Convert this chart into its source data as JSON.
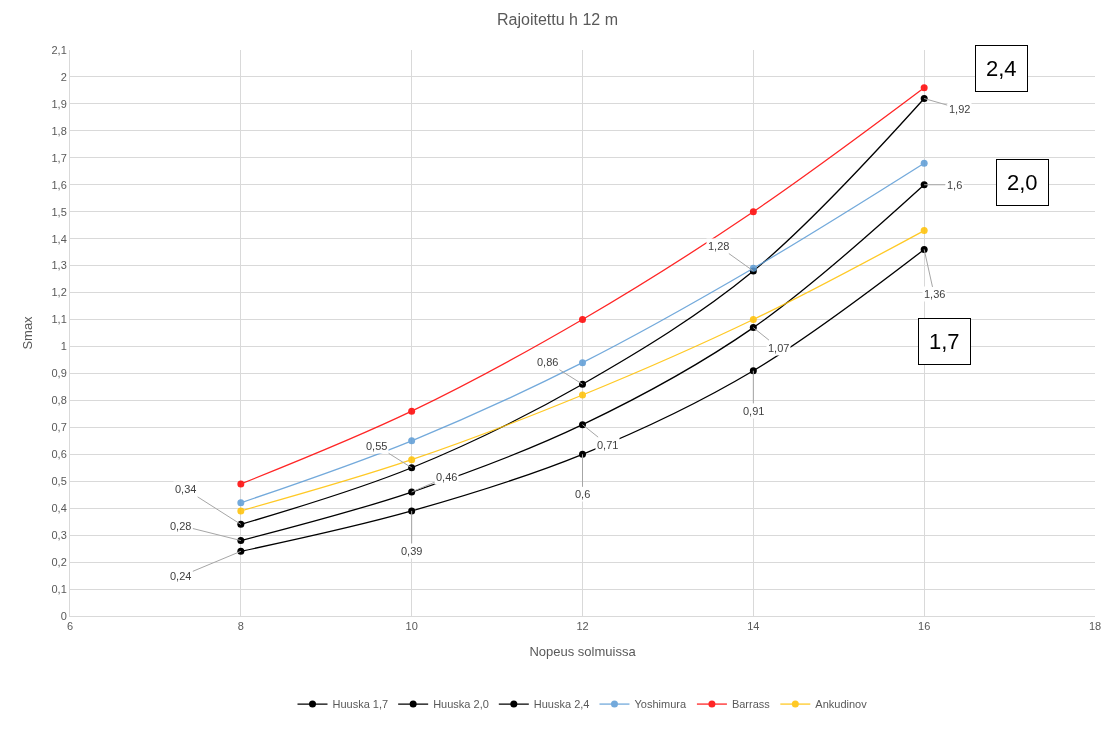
{
  "chart_data": {
    "type": "line",
    "title": "Rajoitettu h 12 m",
    "xlabel": "Nopeus solmuissa",
    "ylabel": "Smax",
    "x": [
      8,
      10,
      12,
      14,
      16
    ],
    "series": [
      {
        "name": "Huuska 1,7",
        "color": "#000000",
        "values": [
          0.24,
          0.39,
          0.6,
          0.91,
          1.36
        ],
        "value_labels": [
          "0,24",
          "0,39",
          "0,6",
          "0,91",
          "1,36"
        ]
      },
      {
        "name": "Huuska 2,0",
        "color": "#000000",
        "values": [
          0.28,
          0.46,
          0.71,
          1.07,
          1.6
        ],
        "value_labels": [
          "0,28",
          "0,46",
          "0,71",
          "1,07",
          "1,6"
        ]
      },
      {
        "name": "Huuska 2,4",
        "color": "#000000",
        "values": [
          0.34,
          0.55,
          0.86,
          1.28,
          1.92
        ],
        "value_labels": [
          "0,34",
          "0,55",
          "0,86",
          "1,28",
          "1,92"
        ]
      },
      {
        "name": "Yoshimura",
        "color": "#5b9bd5",
        "values": [
          0.42,
          0.65,
          0.94,
          1.29,
          1.68
        ]
      },
      {
        "name": "Barrass",
        "color": "#ff0000",
        "values": [
          0.49,
          0.76,
          1.1,
          1.5,
          1.96
        ]
      },
      {
        "name": "Ankudinov",
        "color": "#ffc000",
        "values": [
          0.39,
          0.58,
          0.82,
          1.1,
          1.43
        ]
      }
    ],
    "xlim": [
      6,
      18
    ],
    "xticks": [
      6,
      8,
      10,
      12,
      14,
      16,
      18
    ],
    "ylim": [
      0,
      2.1
    ],
    "yticks": [
      0,
      {
        "value": 0.1,
        "label": "0,1"
      },
      {
        "value": 0.2,
        "label": "0,2"
      },
      {
        "value": 0.3,
        "label": "0,3"
      },
      {
        "value": 0.4,
        "label": "0,4"
      },
      {
        "value": 0.5,
        "label": "0,5"
      },
      {
        "value": 0.6,
        "label": "0,6"
      },
      {
        "value": 0.7,
        "label": "0,7"
      },
      {
        "value": 0.8,
        "label": "0,8"
      },
      {
        "value": 0.9,
        "label": "0,9"
      },
      1,
      {
        "value": 1.1,
        "label": "1,1"
      },
      {
        "value": 1.2,
        "label": "1,2"
      },
      {
        "value": 1.3,
        "label": "1,3"
      },
      {
        "value": 1.4,
        "label": "1,4"
      },
      {
        "value": 1.5,
        "label": "1,5"
      },
      {
        "value": 1.6,
        "label": "1,6"
      },
      {
        "value": 1.7,
        "label": "1,7"
      },
      {
        "value": 1.8,
        "label": "1,8"
      },
      {
        "value": 1.9,
        "label": "1,9"
      },
      2,
      {
        "value": 2.1,
        "label": "2,1"
      }
    ],
    "annotations": [
      "2,4",
      "2,0",
      "1,7"
    ],
    "grid": true,
    "legend": "bottom",
    "marker": "circle",
    "line_style": "solid"
  }
}
